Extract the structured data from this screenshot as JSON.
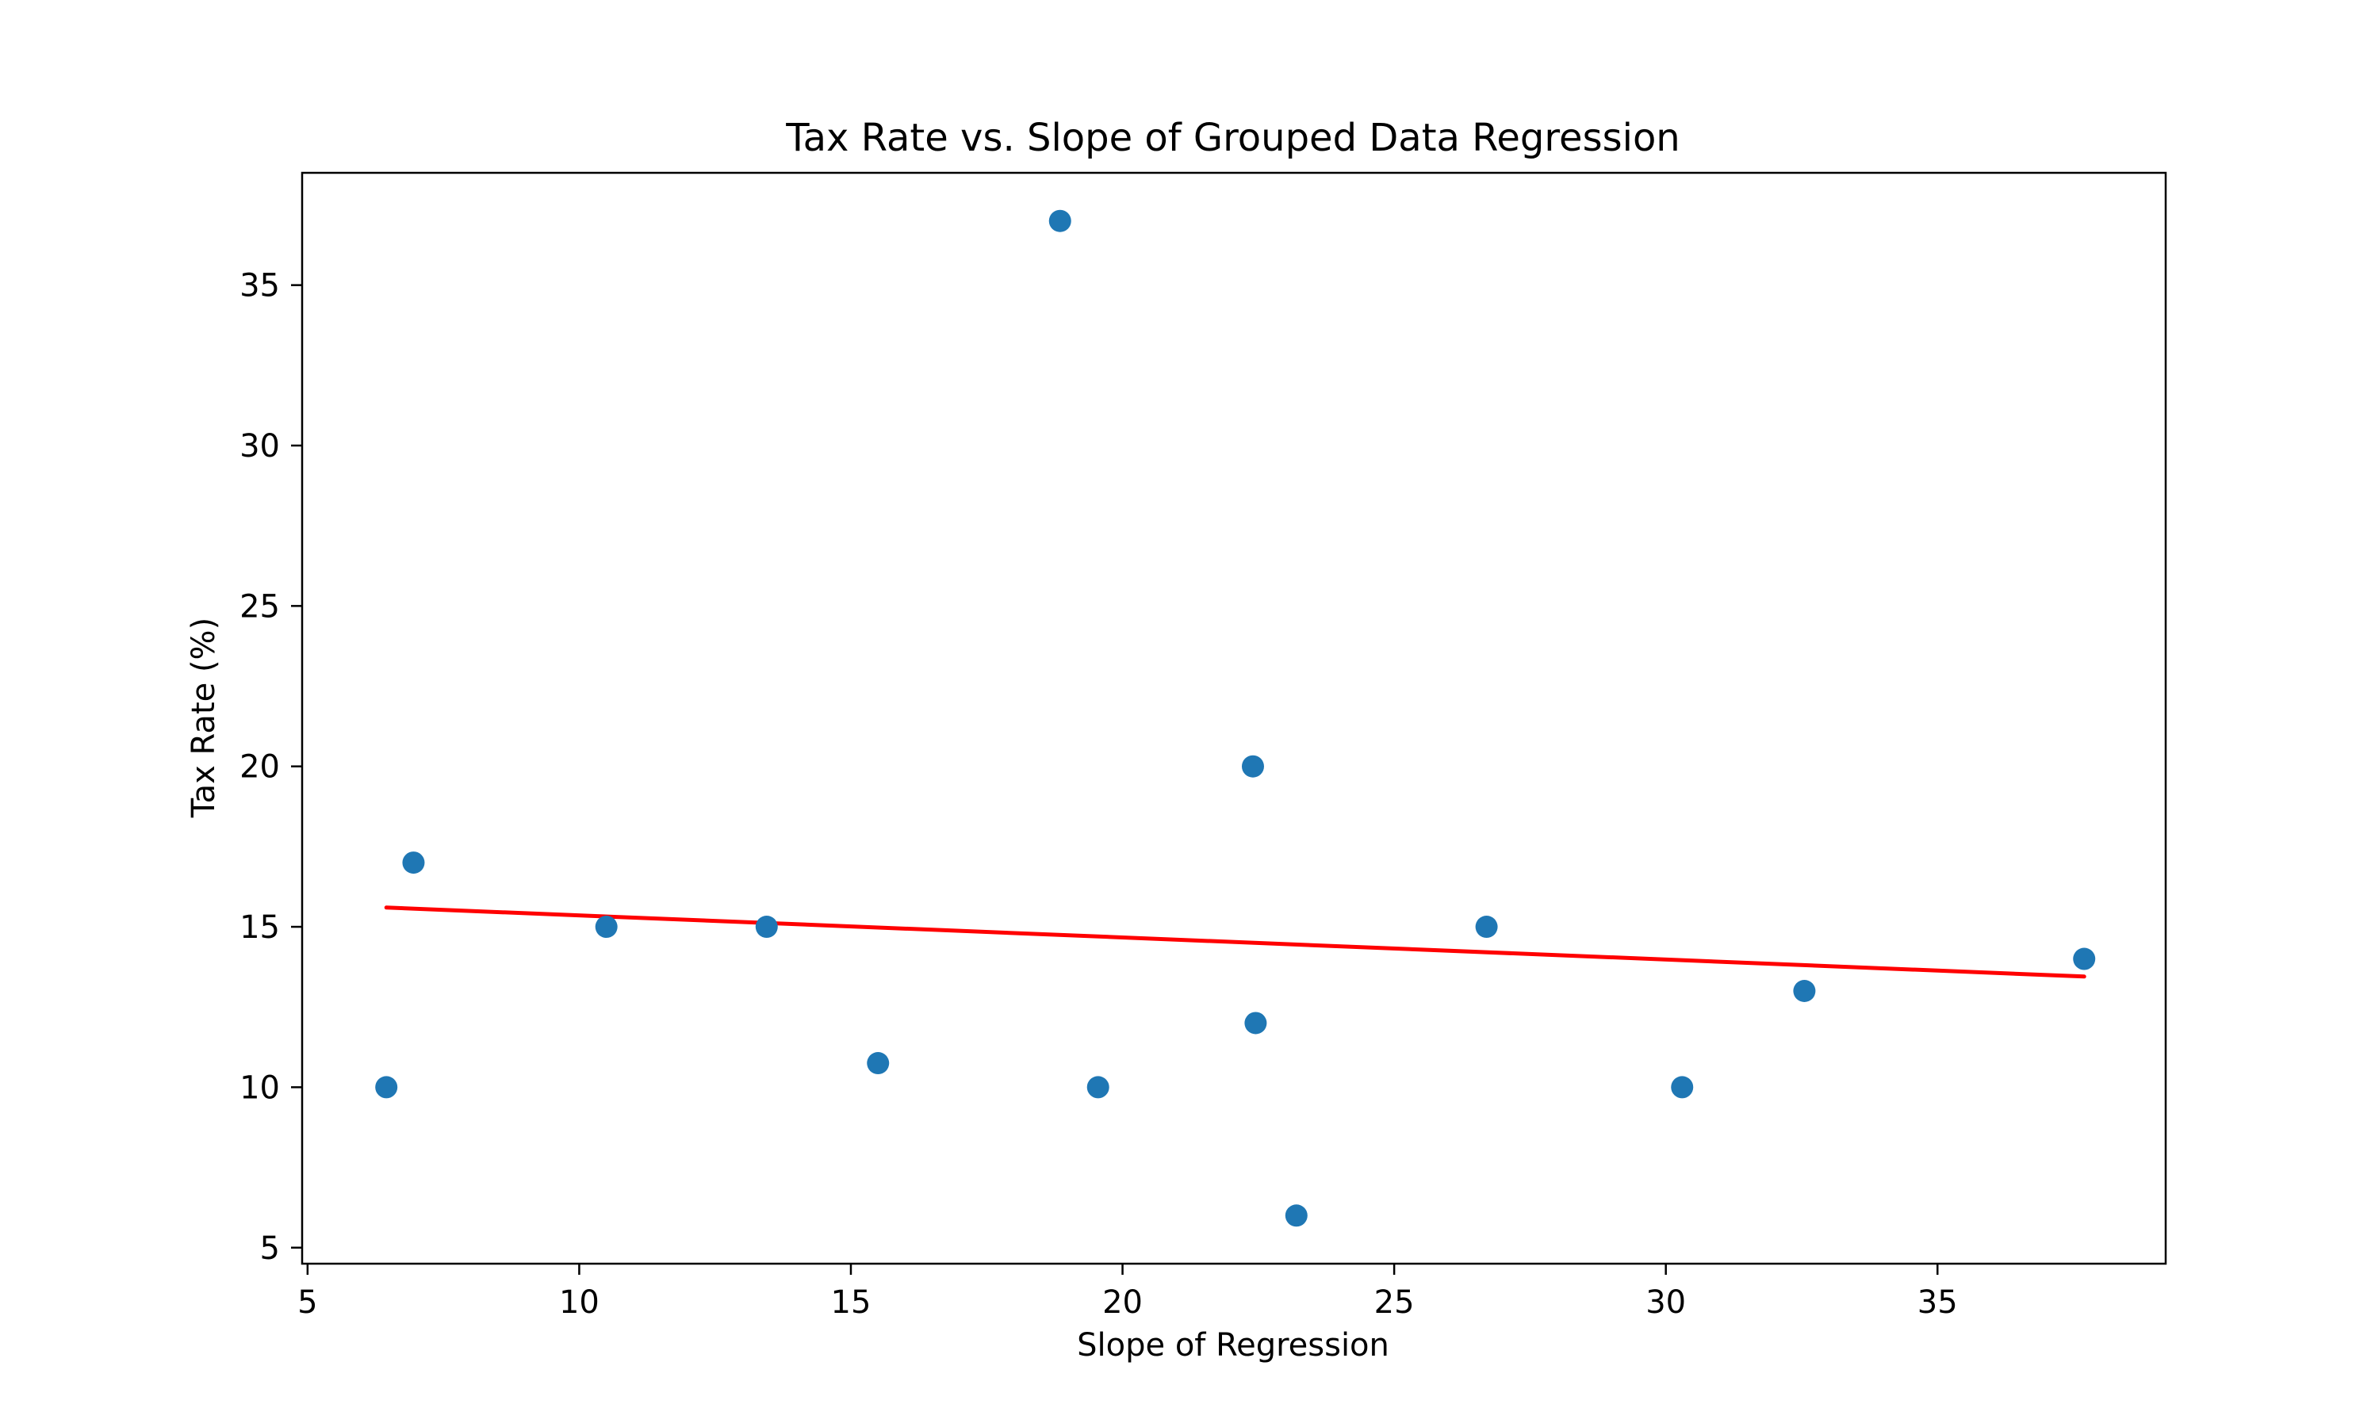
{
  "chart_data": {
    "type": "scatter",
    "title": "Tax Rate vs. Slope of Grouped Data Regression",
    "xlabel": "Slope of Regression",
    "ylabel": "Tax Rate (%)",
    "xlim": [
      4.9,
      39.2
    ],
    "ylim": [
      4.5,
      38.5
    ],
    "xticks": [
      5,
      10,
      15,
      20,
      25,
      30,
      35
    ],
    "yticks": [
      5,
      10,
      15,
      20,
      25,
      30,
      35
    ],
    "grid": false,
    "legend": "none",
    "point_color": "#1f77b4",
    "line_color": "#ff0000",
    "points": [
      {
        "x": 6.45,
        "y": 10
      },
      {
        "x": 6.95,
        "y": 17
      },
      {
        "x": 10.5,
        "y": 15
      },
      {
        "x": 13.45,
        "y": 15
      },
      {
        "x": 15.5,
        "y": 10.75
      },
      {
        "x": 18.85,
        "y": 37
      },
      {
        "x": 19.55,
        "y": 10
      },
      {
        "x": 22.4,
        "y": 20
      },
      {
        "x": 22.45,
        "y": 12
      },
      {
        "x": 23.2,
        "y": 6
      },
      {
        "x": 26.7,
        "y": 15
      },
      {
        "x": 30.3,
        "y": 10
      },
      {
        "x": 32.55,
        "y": 13
      },
      {
        "x": 37.7,
        "y": 14
      }
    ],
    "fit_line": {
      "x": [
        6.45,
        37.7
      ],
      "y": [
        15.6,
        13.45
      ]
    }
  }
}
